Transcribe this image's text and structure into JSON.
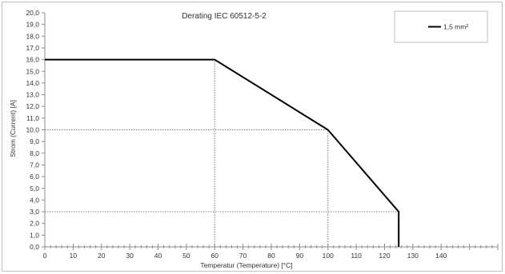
{
  "chart_data": {
    "type": "line",
    "title": "Derating IEC 60512-5-2",
    "xlabel": "Temperatur (Temperature) [°C]",
    "ylabel": "Strom (Current) [A]",
    "xlim": [
      0,
      160
    ],
    "ylim": [
      0,
      20
    ],
    "x_ticks": [
      0,
      10,
      20,
      30,
      40,
      50,
      60,
      70,
      80,
      90,
      100,
      110,
      120,
      130,
      140
    ],
    "x_tick_labels": [
      "0",
      "10",
      "20",
      "30",
      "40",
      "50",
      "60",
      "70",
      "80",
      "90",
      "100",
      "110",
      "120",
      "130",
      "140"
    ],
    "y_ticks": [
      0,
      1,
      2,
      3,
      4,
      5,
      6,
      7,
      8,
      9,
      10,
      11,
      12,
      13,
      14,
      15,
      16,
      17,
      18,
      19,
      20
    ],
    "y_tick_labels": [
      "0,0",
      "1,0",
      "2,0",
      "3,0",
      "4,0",
      "5,0",
      "6,0",
      "7,0",
      "8,0",
      "9,0",
      "10,0",
      "11,0",
      "12,0",
      "13,0",
      "14,0",
      "15,0",
      "16,0",
      "17,0",
      "18,0",
      "19,0",
      "20,0"
    ],
    "series": [
      {
        "name": "1,5 mm²",
        "color": "#000000",
        "x": [
          0,
          60,
          100,
          125,
          125
        ],
        "y": [
          16,
          16,
          10,
          3,
          0
        ]
      }
    ],
    "reference_lines": [
      {
        "x": [
          60,
          60
        ],
        "y": [
          0,
          16
        ],
        "style": "dotted"
      },
      {
        "x": [
          0,
          100
        ],
        "y": [
          10,
          10
        ],
        "style": "dotted"
      },
      {
        "x": [
          100,
          100
        ],
        "y": [
          0,
          10
        ],
        "style": "dotted"
      },
      {
        "x": [
          0,
          125
        ],
        "y": [
          3,
          3
        ],
        "style": "dotted"
      }
    ],
    "grid": false,
    "legend_position": "top-right"
  }
}
